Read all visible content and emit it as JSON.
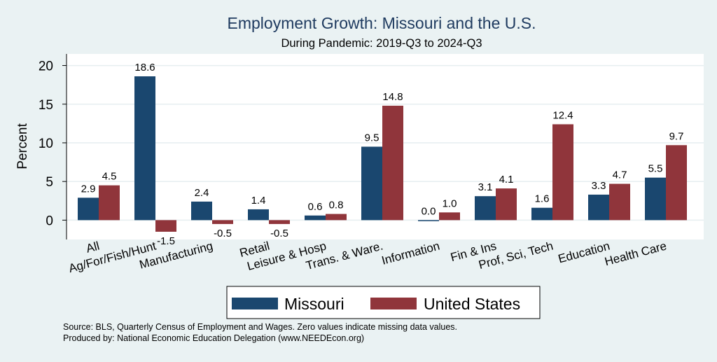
{
  "chart_data": {
    "type": "bar",
    "title": "Employment Growth: Missouri and the U.S.",
    "subtitle": "During Pandemic: 2019-Q3 to 2024-Q3",
    "xlabel": "",
    "ylabel": "Percent",
    "ylim": [
      -2.5,
      21.5
    ],
    "yticks": [
      0,
      5,
      10,
      15,
      20
    ],
    "grid": true,
    "legend_position": "bottom",
    "categories": [
      "All",
      "Ag/For/Fish/Hunt",
      "Manufacturing",
      "Retail",
      "Leisure & Hosp",
      "Trans. & Ware.",
      "Information",
      "Fin & Ins",
      "Prof, Sci, Tech",
      "Education",
      "Health Care"
    ],
    "series": [
      {
        "name": "Missouri",
        "color": "#1a476f",
        "values": [
          2.9,
          18.6,
          2.4,
          1.4,
          0.6,
          9.5,
          0.0,
          3.1,
          1.6,
          3.3,
          5.5
        ],
        "labels": [
          "2.9",
          "18.6",
          "2.4",
          "1.4",
          "0.6",
          "9.5",
          "0.0",
          "3.1",
          "1.6",
          "3.3",
          "5.5"
        ]
      },
      {
        "name": "United States",
        "color": "#90353b",
        "values": [
          4.5,
          -1.5,
          -0.5,
          -0.5,
          0.8,
          14.8,
          1.0,
          4.1,
          12.4,
          4.7,
          9.7
        ],
        "labels": [
          "4.5",
          "-1.5",
          "-0.5",
          "-0.5",
          "0.8",
          "14.8",
          "1.0",
          "4.1",
          "12.4",
          "4.7",
          "9.7"
        ]
      }
    ]
  },
  "notes": {
    "source": "Source: BLS, Quarterly Census of Employment and Wages. Zero values indicate missing data values.",
    "produced": "Produced by: National Economic Education Delegation (www.NEEDEcon.org)"
  }
}
